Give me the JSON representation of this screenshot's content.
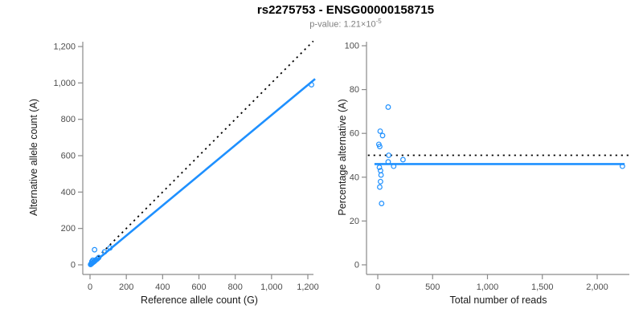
{
  "header": {
    "title": "rs2275753 - ENSG00000158715",
    "subtitle_prefix": "p-value: 1.21×10",
    "subtitle_exponent": "-5"
  },
  "colors": {
    "accent_blue": "#1E90FF",
    "identity_black": "#000000",
    "axis_gray": "#8a8a8a",
    "tick_text": "#4d4d4d",
    "label_text": "#1a1a1a",
    "subtitle_gray": "#7f7f7f"
  },
  "chart_data": [
    {
      "type": "scatter",
      "xlabel": "Reference allele count (G)",
      "ylabel": "Alternative allele count (A)",
      "xlim": [
        0,
        1200
      ],
      "ylim": [
        0,
        1200
      ],
      "grid": false,
      "legend": "none",
      "xticks": [
        {
          "v": 0,
          "label": "0"
        },
        {
          "v": 200,
          "label": "200"
        },
        {
          "v": 400,
          "label": "400"
        },
        {
          "v": 600,
          "label": "600"
        },
        {
          "v": 800,
          "label": "800"
        },
        {
          "v": 1000,
          "label": "1,000"
        },
        {
          "v": 1200,
          "label": "1,200"
        }
      ],
      "yticks": [
        {
          "v": 0,
          "label": "0"
        },
        {
          "v": 200,
          "label": "200"
        },
        {
          "v": 400,
          "label": "400"
        },
        {
          "v": 600,
          "label": "600"
        },
        {
          "v": 800,
          "label": "800"
        },
        {
          "v": 1000,
          "label": "1,000"
        },
        {
          "v": 1200,
          "label": "1,200"
        }
      ],
      "lines": [
        {
          "name": "identity-line",
          "style": "dotted",
          "color_key": "identity_black",
          "from": [
            0,
            0
          ],
          "to": [
            1230,
            1230
          ]
        },
        {
          "name": "fit-line",
          "style": "solid",
          "color_key": "accent_blue",
          "from": [
            0,
            -5
          ],
          "to": [
            1240,
            1022
          ]
        }
      ],
      "points": [
        [
          3,
          2
        ],
        [
          6,
          5
        ],
        [
          9,
          7
        ],
        [
          12,
          10
        ],
        [
          16,
          13
        ],
        [
          20,
          16
        ],
        [
          24,
          19
        ],
        [
          28,
          23
        ],
        [
          33,
          27
        ],
        [
          40,
          32
        ],
        [
          48,
          40
        ],
        [
          10,
          18
        ],
        [
          15,
          25
        ],
        [
          25,
          83
        ],
        [
          80,
          71
        ],
        [
          110,
          93
        ],
        [
          1220,
          990
        ]
      ]
    },
    {
      "type": "scatter",
      "xlabel": "Total number of reads",
      "ylabel": "Percentage alternative (A)",
      "xlim": [
        0,
        2300
      ],
      "ylim": [
        0,
        100
      ],
      "grid": false,
      "legend": "none",
      "xticks": [
        {
          "v": 0,
          "label": "0"
        },
        {
          "v": 500,
          "label": "500"
        },
        {
          "v": 1000,
          "label": "1,000"
        },
        {
          "v": 1500,
          "label": "1,500"
        },
        {
          "v": 2000,
          "label": "2,000"
        }
      ],
      "yticks": [
        {
          "v": 0,
          "label": "0"
        },
        {
          "v": 20,
          "label": "20"
        },
        {
          "v": 40,
          "label": "40"
        },
        {
          "v": 60,
          "label": "60"
        },
        {
          "v": 80,
          "label": "80"
        },
        {
          "v": 100,
          "label": "100"
        }
      ],
      "lines": [
        {
          "name": "expected-50pct-line",
          "style": "dotted",
          "color_key": "identity_black",
          "from": [
            -90,
            50
          ],
          "to": [
            2290,
            50
          ]
        },
        {
          "name": "fitted-percentage-line",
          "style": "solid",
          "color_key": "accent_blue",
          "from": [
            -30,
            46
          ],
          "to": [
            2250,
            46
          ]
        }
      ],
      "points": [
        [
          95,
          72
        ],
        [
          22,
          61
        ],
        [
          44,
          59
        ],
        [
          10,
          55
        ],
        [
          18,
          54
        ],
        [
          100,
          50
        ],
        [
          95,
          47
        ],
        [
          230,
          48
        ],
        [
          145,
          45
        ],
        [
          15,
          44.5
        ],
        [
          25,
          43
        ],
        [
          30,
          41
        ],
        [
          25,
          38
        ],
        [
          18,
          35.5
        ],
        [
          35,
          28
        ],
        [
          2230,
          45
        ]
      ]
    }
  ]
}
